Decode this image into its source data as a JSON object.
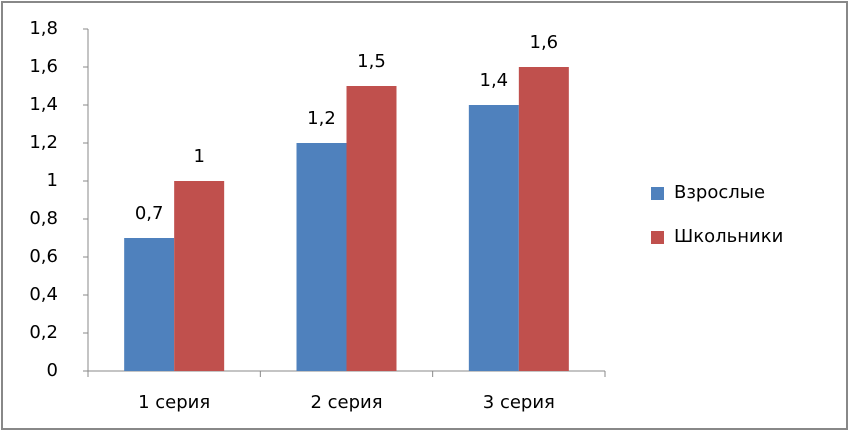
{
  "chart_data": {
    "type": "bar",
    "categories": [
      "1 серия",
      "2 серия",
      "3 серия"
    ],
    "series": [
      {
        "name": "Взрослые",
        "color": "#4f81bd",
        "values": [
          0.7,
          1.2,
          1.4
        ],
        "value_labels": [
          "0,7",
          "1,2",
          "1,4"
        ]
      },
      {
        "name": "Школьники",
        "color": "#c0504d",
        "values": [
          1,
          1.5,
          1.6
        ],
        "value_labels": [
          "1",
          "1,5",
          "1,6"
        ]
      }
    ],
    "ylim": [
      0,
      1.8
    ],
    "yticks": [
      0,
      {
        "value": 0.2,
        "label": "0,2"
      },
      {
        "value": 0.4,
        "label": "0,4"
      },
      {
        "value": 0.6,
        "label": "0,6"
      },
      {
        "value": 0.8,
        "label": "0,8"
      },
      1,
      {
        "value": 1.2,
        "label": "1,2"
      },
      {
        "value": 1.4,
        "label": "1,4"
      },
      {
        "value": 1.6,
        "label": "1,6"
      },
      {
        "value": 1.8,
        "label": "1,8"
      }
    ],
    "grid": false,
    "legend": "right"
  }
}
